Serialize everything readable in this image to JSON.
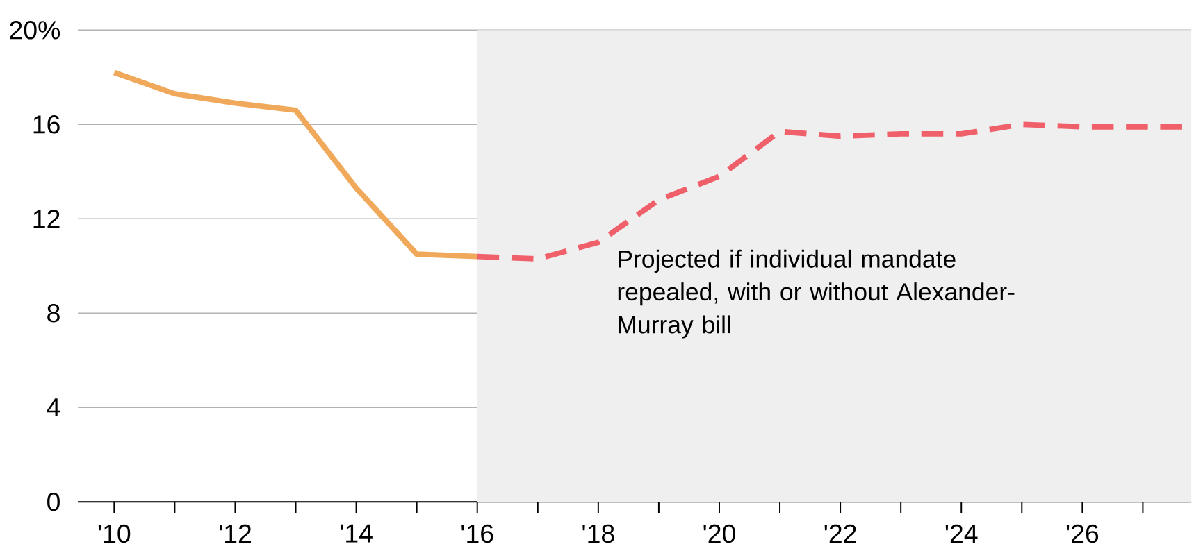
{
  "chart_data": {
    "type": "line",
    "series": [
      {
        "x": [
          2010,
          2011,
          2012,
          2013,
          2014,
          2015,
          2016
        ],
        "values": [
          18.2,
          17.3,
          16.9,
          16.6,
          13.3,
          10.5,
          10.4
        ],
        "color": "#f0a95a",
        "line_style": "solid"
      },
      {
        "x": [
          2016,
          2017,
          2018,
          2019,
          2020,
          2021,
          2022,
          2023,
          2024,
          2025,
          2026,
          2027.8
        ],
        "values": [
          10.4,
          10.3,
          11.0,
          12.8,
          13.8,
          15.7,
          15.5,
          15.6,
          15.6,
          16.0,
          15.9,
          15.9
        ],
        "color": "#f0606a",
        "line_style": "dashed"
      }
    ],
    "xlim": [
      2009.4,
      2027.8
    ],
    "ylim": [
      0,
      20
    ],
    "xticks": [
      {
        "value": 2010,
        "label": "'10"
      },
      {
        "value": 2011,
        "label": null
      },
      {
        "value": 2012,
        "label": "'12"
      },
      {
        "value": 2013,
        "label": null
      },
      {
        "value": 2014,
        "label": "'14"
      },
      {
        "value": 2015,
        "label": null
      },
      {
        "value": 2016,
        "label": "'16"
      },
      {
        "value": 2017,
        "label": null
      },
      {
        "value": 2018,
        "label": "'18"
      },
      {
        "value": 2019,
        "label": null
      },
      {
        "value": 2020,
        "label": "'20"
      },
      {
        "value": 2021,
        "label": null
      },
      {
        "value": 2022,
        "label": "'22"
      },
      {
        "value": 2023,
        "label": null
      },
      {
        "value": 2024,
        "label": "'24"
      },
      {
        "value": 2025,
        "label": null
      },
      {
        "value": 2026,
        "label": "'26"
      },
      {
        "value": 2027,
        "label": null
      }
    ],
    "yticks": [
      0,
      4,
      8,
      12,
      16,
      {
        "value": 20,
        "label": "20%"
      }
    ],
    "grid": "y",
    "marker": "none",
    "bands": [
      {
        "axis": "x",
        "from": 2016,
        "to": 2027.8,
        "color": "#efefef"
      }
    ],
    "annotations": [
      "Projected if individual mandate repealed, with or without Alexander-Murray bill"
    ]
  }
}
